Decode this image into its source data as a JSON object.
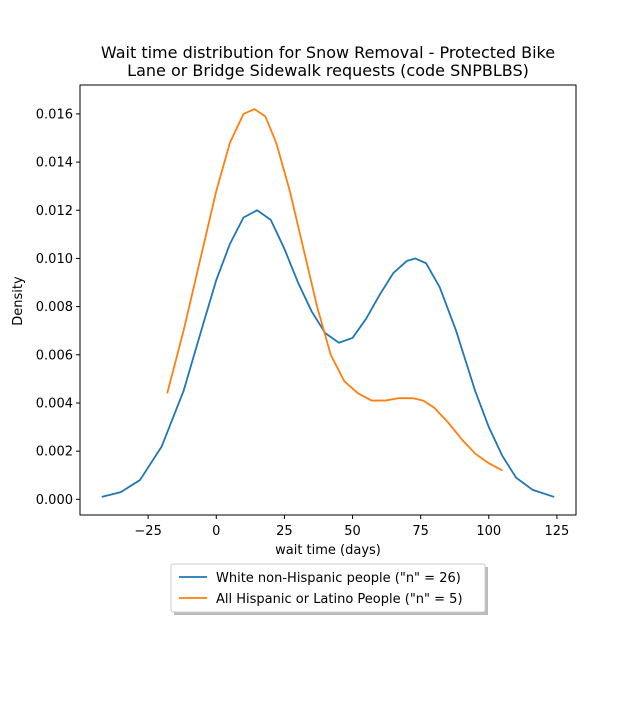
{
  "chart_data": {
    "type": "line",
    "title_lines": [
      "Wait time distribution  for Snow Removal - Protected Bike",
      "Lane or Bridge Sidewalk requests (code SNPBLBS)"
    ],
    "xlabel": "wait time (days)",
    "ylabel": "Density",
    "xlim": [
      -50,
      132
    ],
    "ylim": [
      -0.00065,
      0.0172
    ],
    "x_ticks": [
      -25,
      0,
      25,
      50,
      75,
      100,
      125
    ],
    "x_tick_labels": [
      "−25",
      "0",
      "25",
      "50",
      "75",
      "100",
      "125"
    ],
    "y_ticks": [
      0.0,
      0.002,
      0.004,
      0.006,
      0.008,
      0.01,
      0.012,
      0.014,
      0.016
    ],
    "y_tick_labels": [
      "0.000",
      "0.002",
      "0.004",
      "0.006",
      "0.008",
      "0.010",
      "0.012",
      "0.014",
      "0.016"
    ],
    "grid": false,
    "legend_position": "below the plot, centered",
    "series": [
      {
        "name": "White non-Hispanic people (\"n\" = 26)",
        "color": "#1f77b4",
        "points": [
          [
            -42,
            0.0001
          ],
          [
            -35,
            0.0003
          ],
          [
            -28,
            0.0008
          ],
          [
            -20,
            0.0022
          ],
          [
            -12,
            0.0045
          ],
          [
            -5,
            0.0072
          ],
          [
            0,
            0.0091
          ],
          [
            5,
            0.0106
          ],
          [
            10,
            0.0117
          ],
          [
            15,
            0.012
          ],
          [
            20,
            0.0116
          ],
          [
            25,
            0.0104
          ],
          [
            30,
            0.009
          ],
          [
            35,
            0.0078
          ],
          [
            40,
            0.0069
          ],
          [
            45,
            0.0065
          ],
          [
            50,
            0.0067
          ],
          [
            55,
            0.0075
          ],
          [
            60,
            0.0085
          ],
          [
            65,
            0.0094
          ],
          [
            70,
            0.0099
          ],
          [
            73,
            0.01
          ],
          [
            77,
            0.0098
          ],
          [
            82,
            0.0088
          ],
          [
            88,
            0.007
          ],
          [
            95,
            0.0045
          ],
          [
            100,
            0.003
          ],
          [
            105,
            0.0018
          ],
          [
            110,
            0.0009
          ],
          [
            116,
            0.0004
          ],
          [
            124,
            0.0001
          ]
        ]
      },
      {
        "name": "All Hispanic or Latino People (\"n\" = 5)",
        "color": "#ff7f0e",
        "points": [
          [
            -18,
            0.0044
          ],
          [
            -12,
            0.007
          ],
          [
            -6,
            0.0099
          ],
          [
            0,
            0.0128
          ],
          [
            5,
            0.0148
          ],
          [
            10,
            0.016
          ],
          [
            14,
            0.0162
          ],
          [
            18,
            0.0159
          ],
          [
            22,
            0.0148
          ],
          [
            27,
            0.0128
          ],
          [
            32,
            0.0104
          ],
          [
            37,
            0.008
          ],
          [
            42,
            0.006
          ],
          [
            47,
            0.0049
          ],
          [
            52,
            0.0044
          ],
          [
            57,
            0.0041
          ],
          [
            62,
            0.0041
          ],
          [
            67,
            0.0042
          ],
          [
            72,
            0.0042
          ],
          [
            76,
            0.0041
          ],
          [
            80,
            0.0038
          ],
          [
            85,
            0.0032
          ],
          [
            90,
            0.0025
          ],
          [
            95,
            0.0019
          ],
          [
            100,
            0.0015
          ],
          [
            105,
            0.0012
          ]
        ]
      }
    ]
  }
}
